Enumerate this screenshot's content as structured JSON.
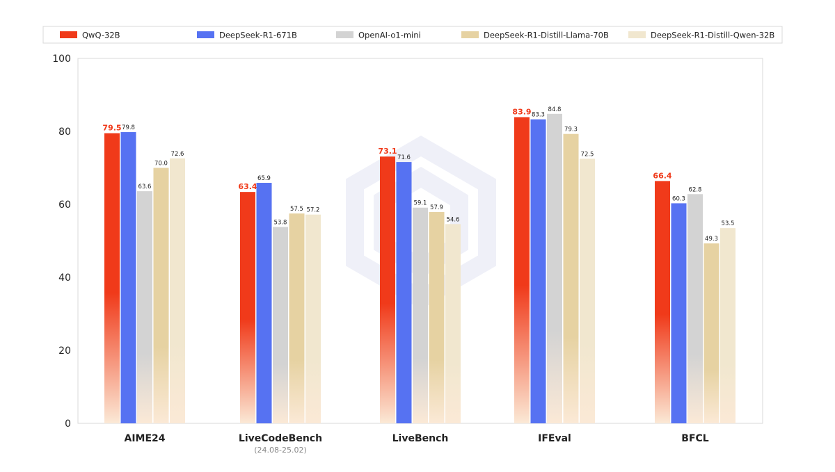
{
  "chart_data": {
    "type": "bar",
    "title": "",
    "xlabel": "",
    "ylabel": "",
    "ylim": [
      0,
      100
    ],
    "yticks": [
      0,
      20,
      40,
      60,
      80,
      100
    ],
    "grid": false,
    "legend_position": "top",
    "categories": [
      "AIME24",
      "LiveCodeBench",
      "LiveBench",
      "IFEval",
      "BFCL"
    ],
    "category_sublabels": [
      "",
      "(24.08-25.02)",
      "",
      "",
      ""
    ],
    "series": [
      {
        "name": "QwQ-32B",
        "color": "#f03a1a",
        "highlight": true,
        "values": [
          79.5,
          63.4,
          73.1,
          83.9,
          66.4
        ]
      },
      {
        "name": "DeepSeek-R1-671B",
        "color": "#5672f2",
        "highlight": false,
        "values": [
          79.8,
          65.9,
          71.6,
          83.3,
          60.3
        ]
      },
      {
        "name": "OpenAI-o1-mini",
        "color": "#d3d3d3",
        "highlight": false,
        "values": [
          63.6,
          53.8,
          59.1,
          84.8,
          62.8
        ]
      },
      {
        "name": "DeepSeek-R1-Distill-Llama-70B",
        "color": "#e6d2a2",
        "highlight": false,
        "values": [
          70.0,
          57.5,
          57.9,
          79.3,
          49.3
        ]
      },
      {
        "name": "DeepSeek-R1-Distill-Qwen-32B",
        "color": "#f1e7cf",
        "highlight": false,
        "values": [
          72.6,
          57.2,
          54.6,
          72.5,
          53.5
        ]
      }
    ]
  }
}
